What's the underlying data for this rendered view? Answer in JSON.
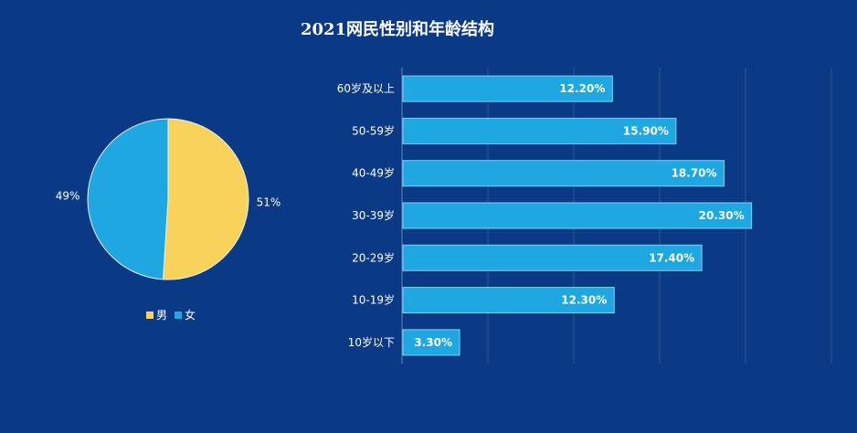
{
  "title": "2021网民性别和年龄结构",
  "chart_data": [
    {
      "type": "pie",
      "labels": [
        "男",
        "女"
      ],
      "values": [
        51,
        49
      ],
      "data_labels": [
        "51%",
        "49%"
      ],
      "colors": [
        "#f9d25b",
        "#1ea7e1"
      ],
      "legend": {
        "position": "bottom",
        "entries": [
          "男",
          "女"
        ]
      }
    },
    {
      "type": "bar",
      "orientation": "horizontal",
      "categories": [
        "60岁及以上",
        "50-59岁",
        "40-49岁",
        "30-39岁",
        "20-29岁",
        "10-19岁",
        "10岁以下"
      ],
      "values": [
        12.2,
        15.9,
        18.7,
        20.3,
        17.4,
        12.3,
        3.3
      ],
      "data_labels": [
        "12.20%",
        "15.90%",
        "18.70%",
        "20.30%",
        "17.40%",
        "12.30%",
        "3.30%"
      ],
      "xlim": [
        0,
        25
      ],
      "grid": true,
      "bar_color": "#1ea7e1"
    }
  ]
}
